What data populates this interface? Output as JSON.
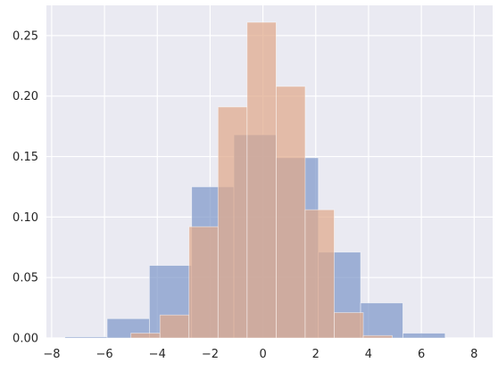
{
  "chart_data": {
    "type": "bar",
    "style": "seaborn-darkgrid histogram, overlapping semi-transparent series",
    "title": "",
    "xlabel": "",
    "ylabel": "",
    "xlim": [
      -8.2,
      8.7
    ],
    "ylim": [
      0,
      0.275
    ],
    "grid": true,
    "legend": "none",
    "xticks": [
      -8,
      -6,
      -4,
      -2,
      0,
      2,
      4,
      6,
      8
    ],
    "xtick_labels": [
      "−8",
      "−6",
      "−4",
      "−2",
      "0",
      "2",
      "4",
      "6",
      "8"
    ],
    "yticks": [
      0.0,
      0.05,
      0.1,
      0.15,
      0.2,
      0.25
    ],
    "ytick_labels": [
      "0.00",
      "0.05",
      "0.10",
      "0.15",
      "0.20",
      "0.25"
    ],
    "series": [
      {
        "color": "#7f98c9",
        "opacity": 0.72,
        "bins": [
          {
            "x0": -7.5,
            "x1": -5.9,
            "value": 0.001
          },
          {
            "x0": -5.9,
            "x1": -4.3,
            "value": 0.016
          },
          {
            "x0": -4.3,
            "x1": -2.7,
            "value": 0.06
          },
          {
            "x0": -2.7,
            "x1": -1.1,
            "value": 0.125
          },
          {
            "x0": -1.1,
            "x1": 0.5,
            "value": 0.168
          },
          {
            "x0": 0.5,
            "x1": 2.1,
            "value": 0.149
          },
          {
            "x0": 2.1,
            "x1": 3.7,
            "value": 0.071
          },
          {
            "x0": 3.7,
            "x1": 5.3,
            "value": 0.029
          },
          {
            "x0": 5.3,
            "x1": 6.9,
            "value": 0.004
          }
        ]
      },
      {
        "color": "#e0a98a",
        "opacity": 0.72,
        "bins": [
          {
            "x0": -5.0,
            "x1": -3.9,
            "value": 0.004
          },
          {
            "x0": -3.9,
            "x1": -2.8,
            "value": 0.019
          },
          {
            "x0": -2.8,
            "x1": -1.7,
            "value": 0.092
          },
          {
            "x0": -1.7,
            "x1": -0.6,
            "value": 0.191
          },
          {
            "x0": -0.6,
            "x1": 0.5,
            "value": 0.261
          },
          {
            "x0": 0.5,
            "x1": 1.6,
            "value": 0.208
          },
          {
            "x0": 1.6,
            "x1": 2.7,
            "value": 0.106
          },
          {
            "x0": 2.7,
            "x1": 3.8,
            "value": 0.021
          },
          {
            "x0": 3.8,
            "x1": 4.9,
            "value": 0.002
          }
        ]
      }
    ]
  }
}
